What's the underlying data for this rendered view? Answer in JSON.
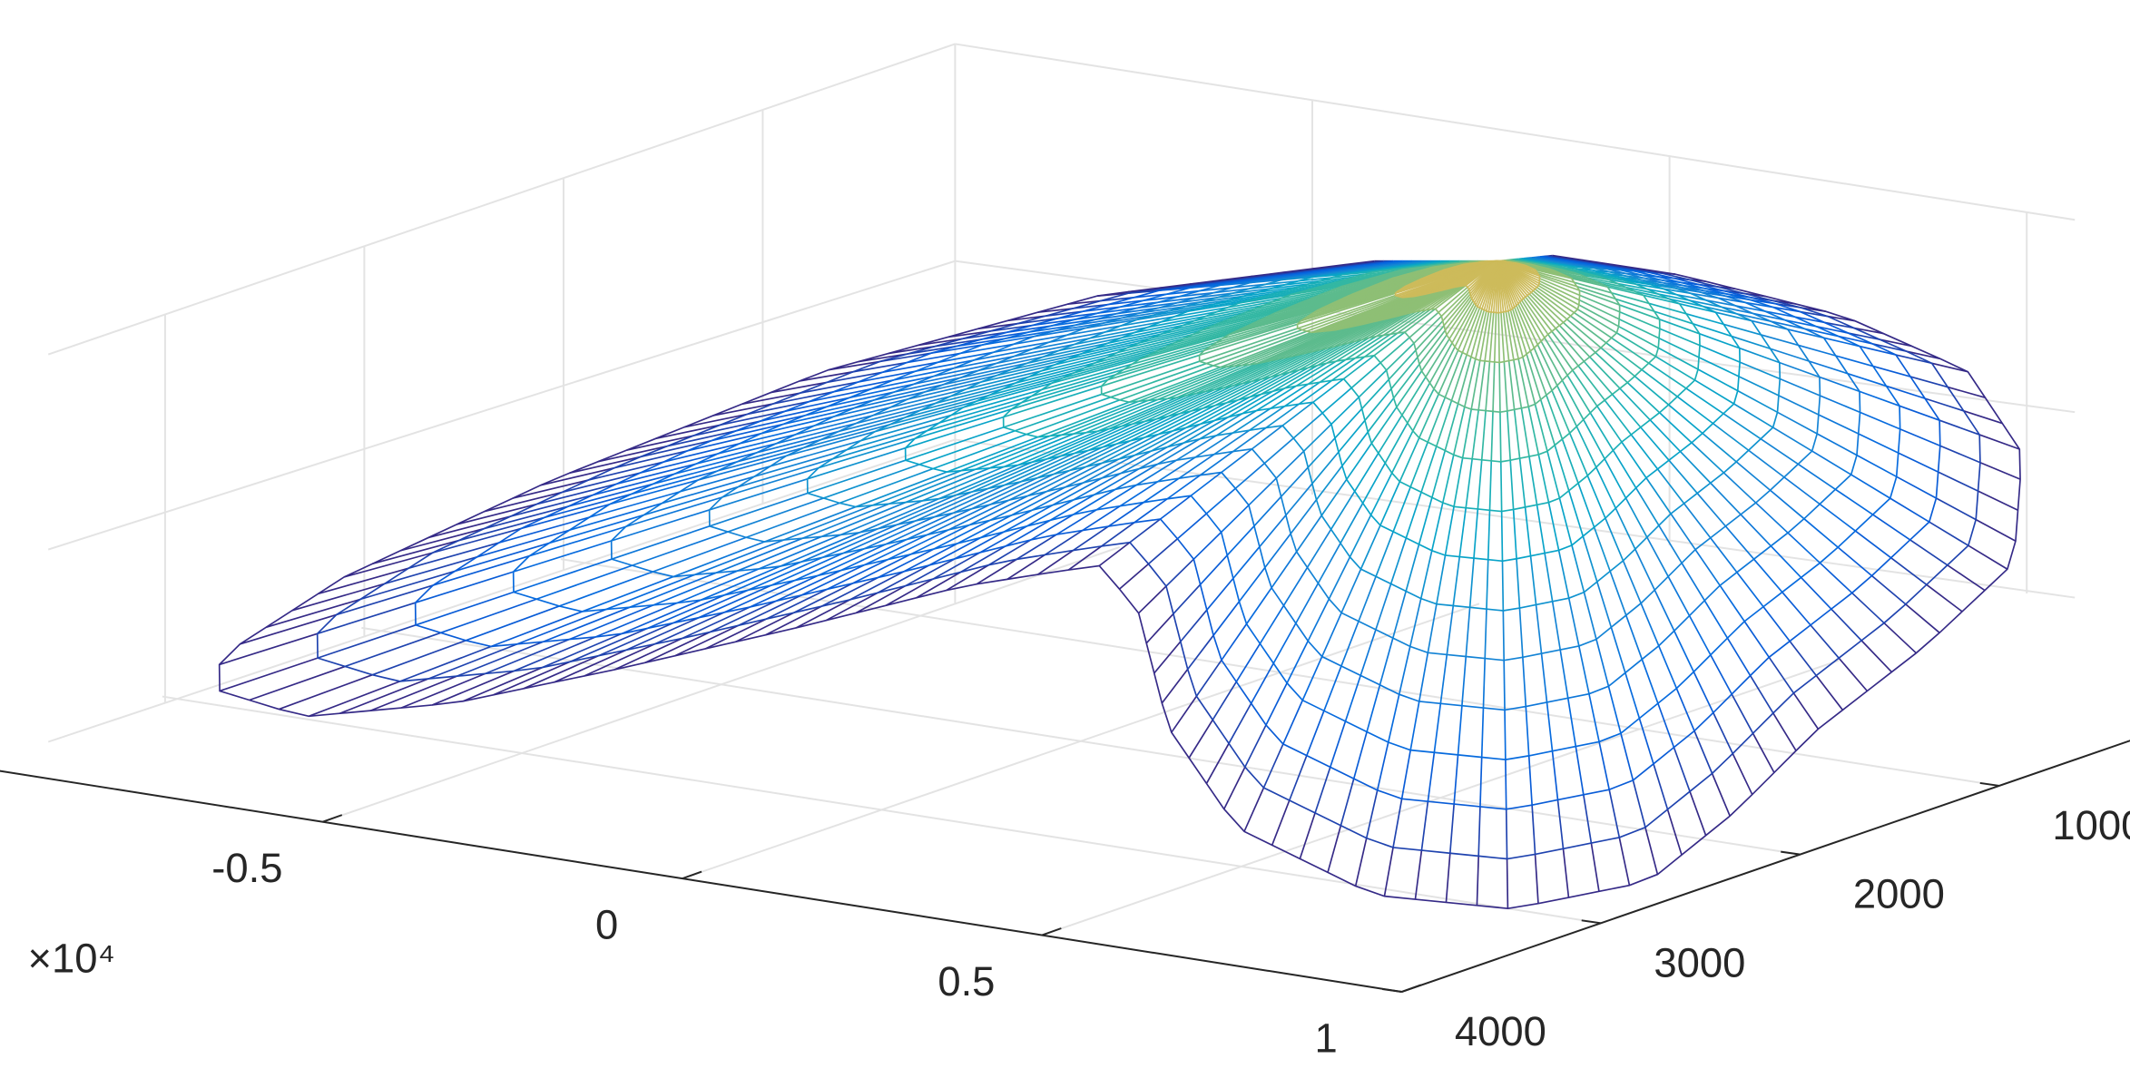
{
  "chart_data": {
    "type": "mesh",
    "xticks": [
      -0.5,
      0,
      0.5,
      1
    ],
    "xlim": [
      -1,
      1
    ],
    "x_multiplier": "×10⁴",
    "yticks": [
      1000,
      2000,
      3000,
      4000
    ],
    "ylim": [
      0,
      4000
    ],
    "grid": true
  }
}
